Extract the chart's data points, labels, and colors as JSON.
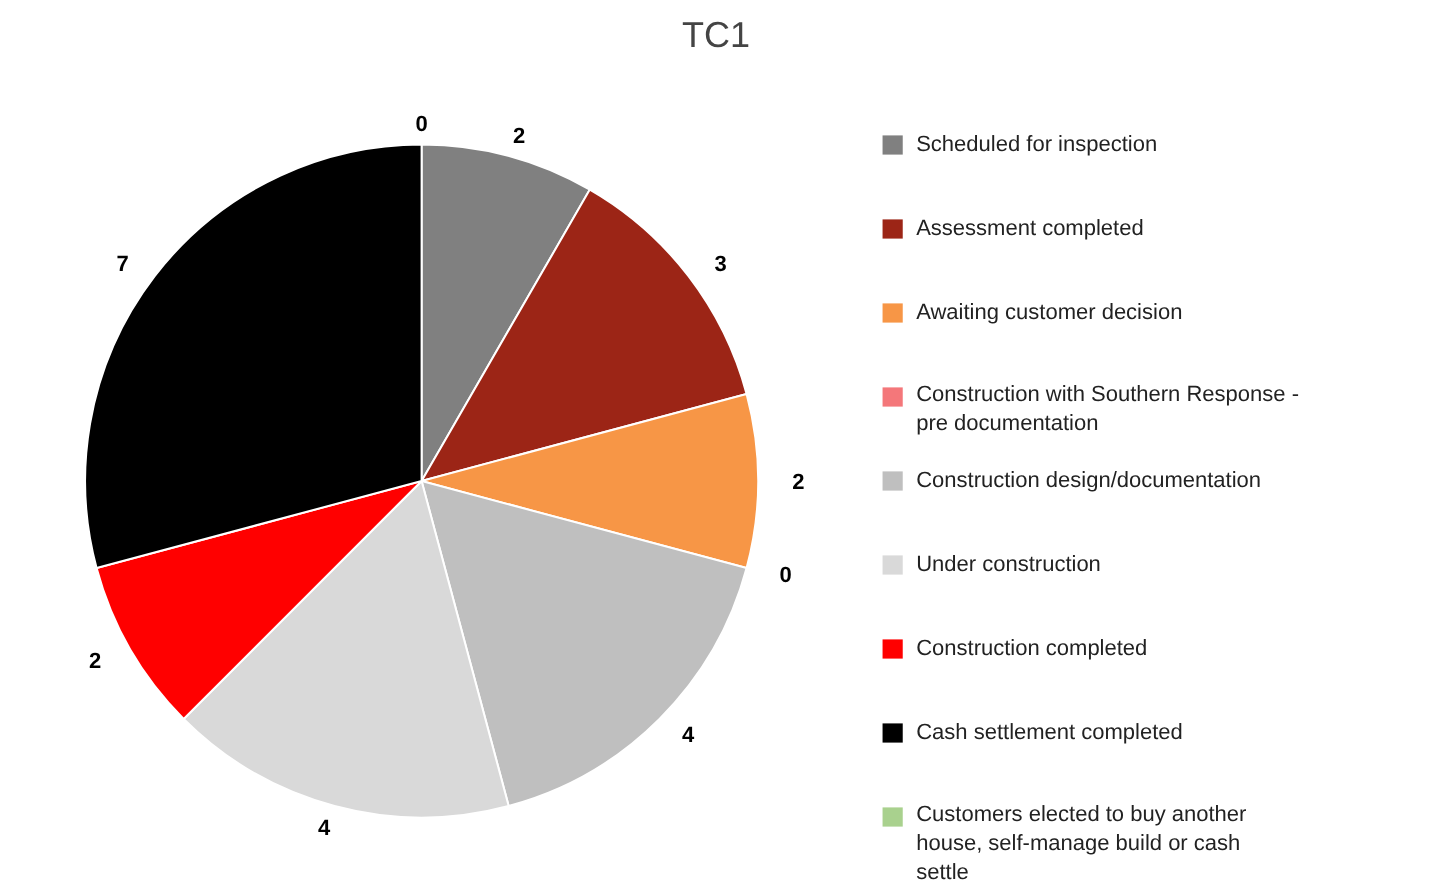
{
  "chart_data": {
    "type": "pie",
    "title": "TC1",
    "categories": [
      "Scheduled for inspection",
      "Assessment completed",
      "Awaiting customer decision",
      "Construction with Southern Response - pre documentation",
      "Construction design/documentation",
      "Under construction",
      "Construction completed",
      "Cash settlement completed",
      "Customers elected to buy another house, self-manage build or cash settle"
    ],
    "values": [
      2,
      3,
      2,
      0,
      4,
      4,
      2,
      7,
      0
    ],
    "colors": [
      "#808080",
      "#9c2516",
      "#f79646",
      "#f4777a",
      "#bfbfbf",
      "#d9d9d9",
      "#ff0000",
      "#000000",
      "#a9d18e"
    ],
    "value_labels": [
      "2",
      "3",
      "2",
      "0",
      "4",
      "4",
      "2",
      "7",
      "0"
    ],
    "legend": "right"
  }
}
